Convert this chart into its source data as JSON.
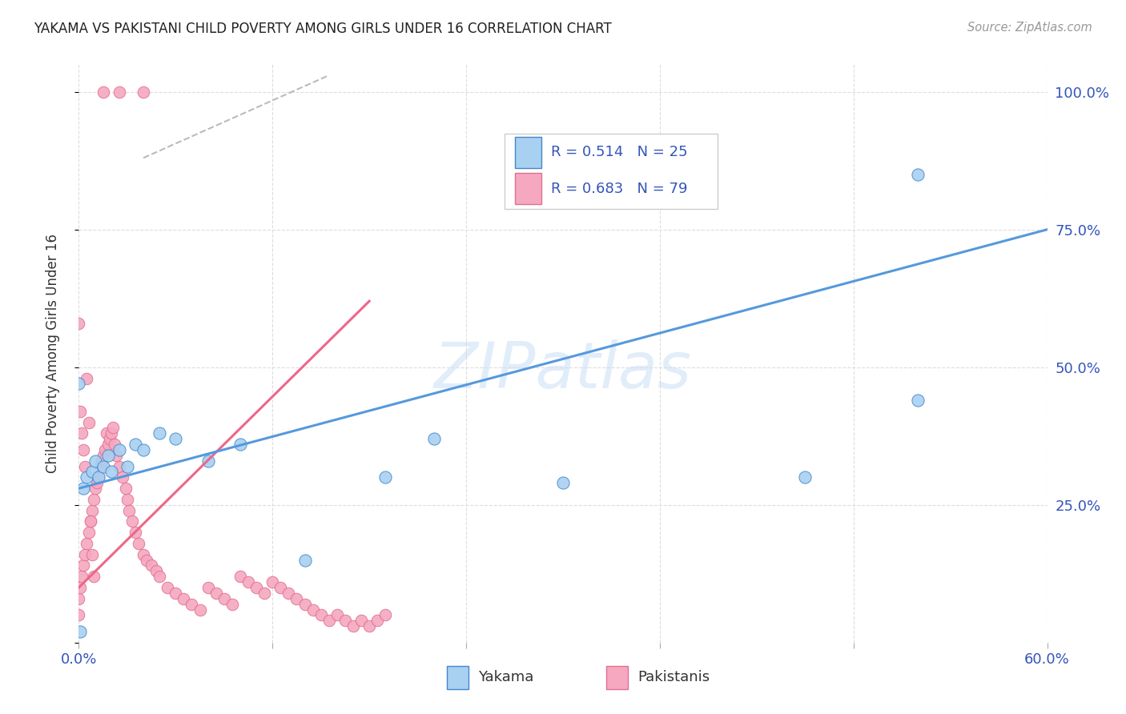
{
  "title": "YAKAMA VS PAKISTANI CHILD POVERTY AMONG GIRLS UNDER 16 CORRELATION CHART",
  "source": "Source: ZipAtlas.com",
  "ylabel": "Child Poverty Among Girls Under 16",
  "xlim": [
    0.0,
    0.6
  ],
  "ylim": [
    0.0,
    1.05
  ],
  "xticks": [
    0.0,
    0.12,
    0.24,
    0.36,
    0.48,
    0.6
  ],
  "yticks": [
    0.0,
    0.25,
    0.5,
    0.75,
    1.0
  ],
  "legend_r_yakama": "R = 0.514",
  "legend_n_yakama": "N = 25",
  "legend_r_pakistani": "R = 0.683",
  "legend_n_pakistani": "N = 79",
  "yakama_color": "#a8d0f0",
  "pakistani_color": "#f5a8c0",
  "yakama_line_color": "#5599dd",
  "pakistani_line_color": "#ee6688",
  "background_color": "#ffffff",
  "grid_color": "#dddddd",
  "yakama_x": [
    0.001,
    0.003,
    0.005,
    0.008,
    0.01,
    0.012,
    0.015,
    0.018,
    0.02,
    0.025,
    0.03,
    0.035,
    0.04,
    0.05,
    0.06,
    0.08,
    0.1,
    0.14,
    0.19,
    0.22,
    0.3,
    0.45,
    0.52,
    0.52,
    0.0
  ],
  "yakama_y": [
    0.02,
    0.28,
    0.3,
    0.31,
    0.33,
    0.3,
    0.32,
    0.34,
    0.31,
    0.35,
    0.32,
    0.36,
    0.35,
    0.38,
    0.37,
    0.33,
    0.36,
    0.15,
    0.3,
    0.37,
    0.29,
    0.3,
    0.85,
    0.44,
    0.47
  ],
  "pakistani_x": [
    0.015,
    0.025,
    0.04,
    0.0,
    0.0,
    0.001,
    0.002,
    0.003,
    0.004,
    0.005,
    0.006,
    0.007,
    0.008,
    0.009,
    0.01,
    0.011,
    0.012,
    0.013,
    0.014,
    0.015,
    0.016,
    0.017,
    0.018,
    0.019,
    0.02,
    0.021,
    0.022,
    0.023,
    0.025,
    0.027,
    0.029,
    0.03,
    0.031,
    0.033,
    0.035,
    0.037,
    0.04,
    0.042,
    0.045,
    0.048,
    0.05,
    0.055,
    0.06,
    0.065,
    0.07,
    0.075,
    0.08,
    0.085,
    0.09,
    0.095,
    0.1,
    0.105,
    0.11,
    0.115,
    0.12,
    0.125,
    0.13,
    0.135,
    0.14,
    0.145,
    0.15,
    0.155,
    0.16,
    0.165,
    0.17,
    0.175,
    0.18,
    0.185,
    0.19,
    0.0,
    0.001,
    0.002,
    0.003,
    0.004,
    0.005,
    0.006,
    0.007,
    0.008,
    0.009
  ],
  "pakistani_y": [
    1.0,
    1.0,
    1.0,
    0.05,
    0.08,
    0.1,
    0.12,
    0.14,
    0.16,
    0.18,
    0.2,
    0.22,
    0.24,
    0.26,
    0.28,
    0.29,
    0.3,
    0.32,
    0.33,
    0.34,
    0.35,
    0.38,
    0.36,
    0.37,
    0.38,
    0.39,
    0.36,
    0.34,
    0.32,
    0.3,
    0.28,
    0.26,
    0.24,
    0.22,
    0.2,
    0.18,
    0.16,
    0.15,
    0.14,
    0.13,
    0.12,
    0.1,
    0.09,
    0.08,
    0.07,
    0.06,
    0.1,
    0.09,
    0.08,
    0.07,
    0.12,
    0.11,
    0.1,
    0.09,
    0.11,
    0.1,
    0.09,
    0.08,
    0.07,
    0.06,
    0.05,
    0.04,
    0.05,
    0.04,
    0.03,
    0.04,
    0.03,
    0.04,
    0.05,
    0.58,
    0.42,
    0.38,
    0.35,
    0.32,
    0.48,
    0.4,
    0.22,
    0.16,
    0.12
  ],
  "yakama_line_x": [
    0.0,
    0.6
  ],
  "yakama_line_y": [
    0.28,
    0.75
  ],
  "pakistani_line_x": [
    0.0,
    0.18
  ],
  "pakistani_line_y": [
    0.1,
    0.62
  ],
  "dashed_line_x": [
    0.04,
    0.155
  ],
  "dashed_line_y": [
    0.88,
    1.03
  ]
}
